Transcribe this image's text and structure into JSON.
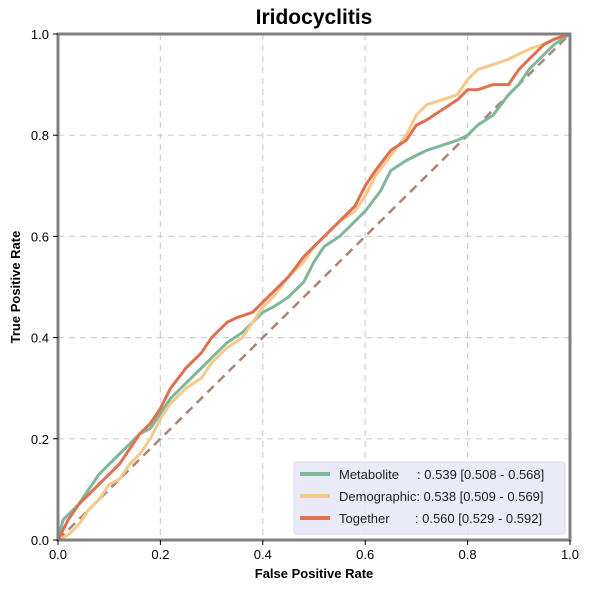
{
  "chart_data": {
    "type": "line",
    "title": "Iridocyclitis",
    "xlabel": "False Positive Rate",
    "ylabel": "True Positive Rate",
    "xlim": [
      0,
      1
    ],
    "ylim": [
      0,
      1
    ],
    "xticks": [
      "0.0",
      "0.2",
      "0.4",
      "0.6",
      "0.8",
      "1.0"
    ],
    "yticks": [
      "0.0",
      "0.2",
      "0.4",
      "0.6",
      "0.8",
      "1.0"
    ],
    "grid": true,
    "legend_position": "lower-right",
    "series": [
      {
        "name": "Metabolite",
        "legend_label": "Metabolite     : 0.539 [0.508 - 0.568]",
        "color": "#7fb79a",
        "x": [
          0,
          0.01,
          0.02,
          0.04,
          0.06,
          0.08,
          0.1,
          0.12,
          0.14,
          0.16,
          0.18,
          0.2,
          0.22,
          0.25,
          0.28,
          0.3,
          0.33,
          0.36,
          0.38,
          0.4,
          0.42,
          0.45,
          0.48,
          0.5,
          0.52,
          0.55,
          0.58,
          0.6,
          0.63,
          0.65,
          0.68,
          0.7,
          0.72,
          0.75,
          0.78,
          0.8,
          0.82,
          0.85,
          0.88,
          0.9,
          0.92,
          0.95,
          0.97,
          1.0
        ],
        "y": [
          0,
          0.04,
          0.05,
          0.07,
          0.1,
          0.13,
          0.15,
          0.17,
          0.19,
          0.21,
          0.22,
          0.25,
          0.28,
          0.31,
          0.34,
          0.36,
          0.39,
          0.41,
          0.43,
          0.45,
          0.46,
          0.48,
          0.51,
          0.55,
          0.58,
          0.6,
          0.63,
          0.65,
          0.69,
          0.73,
          0.75,
          0.76,
          0.77,
          0.78,
          0.79,
          0.8,
          0.82,
          0.84,
          0.88,
          0.9,
          0.93,
          0.96,
          0.98,
          1.0
        ]
      },
      {
        "name": "Demographic",
        "legend_label": "Demographic: 0.538 [0.509 - 0.569]",
        "color": "#f5c98a",
        "x": [
          0,
          0.02,
          0.04,
          0.06,
          0.08,
          0.1,
          0.12,
          0.14,
          0.16,
          0.18,
          0.2,
          0.22,
          0.25,
          0.28,
          0.3,
          0.33,
          0.36,
          0.38,
          0.4,
          0.42,
          0.45,
          0.48,
          0.5,
          0.52,
          0.55,
          0.58,
          0.6,
          0.62,
          0.65,
          0.68,
          0.7,
          0.72,
          0.75,
          0.78,
          0.8,
          0.82,
          0.85,
          0.88,
          0.9,
          0.92,
          0.95,
          0.97,
          1.0
        ],
        "y": [
          0,
          0.01,
          0.03,
          0.06,
          0.08,
          0.11,
          0.12,
          0.15,
          0.17,
          0.2,
          0.24,
          0.27,
          0.3,
          0.32,
          0.35,
          0.38,
          0.4,
          0.43,
          0.46,
          0.48,
          0.52,
          0.55,
          0.58,
          0.6,
          0.63,
          0.65,
          0.68,
          0.72,
          0.76,
          0.8,
          0.84,
          0.86,
          0.87,
          0.88,
          0.91,
          0.93,
          0.94,
          0.95,
          0.96,
          0.97,
          0.98,
          0.99,
          1.0
        ]
      },
      {
        "name": "Together",
        "legend_label": "Together       : 0.560 [0.529 - 0.592]",
        "color": "#e07052",
        "x": [
          0,
          0.01,
          0.02,
          0.04,
          0.06,
          0.08,
          0.1,
          0.12,
          0.14,
          0.16,
          0.18,
          0.2,
          0.22,
          0.25,
          0.28,
          0.3,
          0.33,
          0.35,
          0.38,
          0.4,
          0.42,
          0.45,
          0.48,
          0.5,
          0.52,
          0.55,
          0.58,
          0.6,
          0.62,
          0.65,
          0.68,
          0.7,
          0.72,
          0.75,
          0.78,
          0.8,
          0.82,
          0.85,
          0.88,
          0.9,
          0.92,
          0.95,
          0.97,
          1.0
        ],
        "y": [
          0,
          0.02,
          0.04,
          0.07,
          0.09,
          0.11,
          0.13,
          0.15,
          0.18,
          0.21,
          0.23,
          0.26,
          0.3,
          0.34,
          0.37,
          0.4,
          0.43,
          0.44,
          0.45,
          0.47,
          0.49,
          0.52,
          0.56,
          0.58,
          0.6,
          0.63,
          0.66,
          0.7,
          0.73,
          0.77,
          0.79,
          0.82,
          0.83,
          0.85,
          0.87,
          0.89,
          0.89,
          0.9,
          0.9,
          0.93,
          0.95,
          0.98,
          0.99,
          1.0
        ]
      }
    ],
    "reference_line": {
      "x": [
        0,
        1
      ],
      "y": [
        0,
        1
      ],
      "color": "#a88578",
      "style": "dashed"
    },
    "legend_bg": "#e8e8f8",
    "frame_color": "#808080"
  }
}
